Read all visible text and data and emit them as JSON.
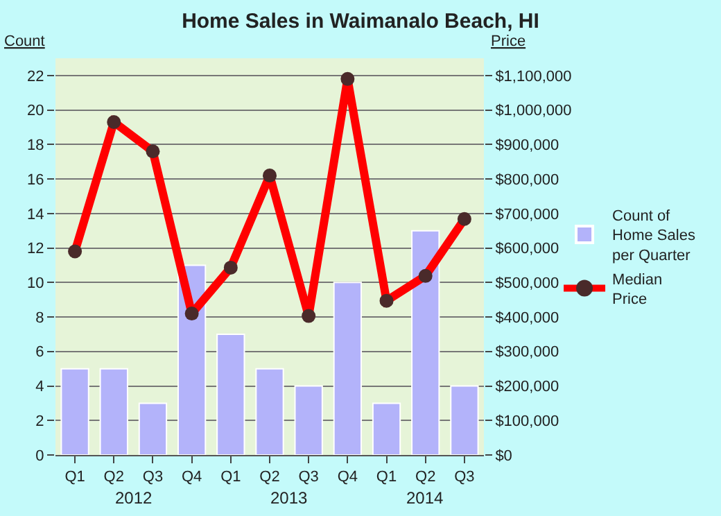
{
  "chart_data": {
    "type": "bar",
    "title": "Home Sales in Waimanalo Beach, HI",
    "ylabel": "Count",
    "y2label": "Price",
    "categories": [
      "Q1",
      "Q2",
      "Q3",
      "Q4",
      "Q1",
      "Q2",
      "Q3",
      "Q4",
      "Q1",
      "Q2",
      "Q3"
    ],
    "series": [
      {
        "name": "Count of Home Sales per Quarter",
        "color": "#b3b3fa",
        "values": [
          5,
          5,
          3,
          11,
          7,
          5,
          4,
          10,
          3,
          13,
          4
        ]
      },
      {
        "name": "Median Price",
        "type": "line",
        "axis": "y2",
        "color": "#ff0000",
        "marker": "circle",
        "values": [
          590000,
          965000,
          880000,
          410000,
          543000,
          810000,
          403000,
          1090000,
          447000,
          519000,
          684000
        ]
      }
    ],
    "ylim": [
      0,
      23
    ],
    "yticks": [
      0,
      2,
      4,
      6,
      8,
      10,
      12,
      14,
      16,
      18,
      20,
      22
    ],
    "y2lim": [
      0,
      1150000
    ],
    "y2ticks": [
      {
        "value": 0,
        "label": "$0"
      },
      {
        "value": 100000,
        "label": "$100,000"
      },
      {
        "value": 200000,
        "label": "$200,000"
      },
      {
        "value": 300000,
        "label": "$300,000"
      },
      {
        "value": 400000,
        "label": "$400,000"
      },
      {
        "value": 500000,
        "label": "$500,000"
      },
      {
        "value": 600000,
        "label": "$600,000"
      },
      {
        "value": 700000,
        "label": "$700,000"
      },
      {
        "value": 800000,
        "label": "$800,000"
      },
      {
        "value": 900000,
        "label": "$900,000"
      },
      {
        "value": 1000000,
        "label": "$1,000,000"
      },
      {
        "value": 1100000,
        "label": "$1,100,000"
      }
    ],
    "annotations": [
      "2012",
      "2013",
      "2014"
    ],
    "grid": "y",
    "legend": "right"
  }
}
